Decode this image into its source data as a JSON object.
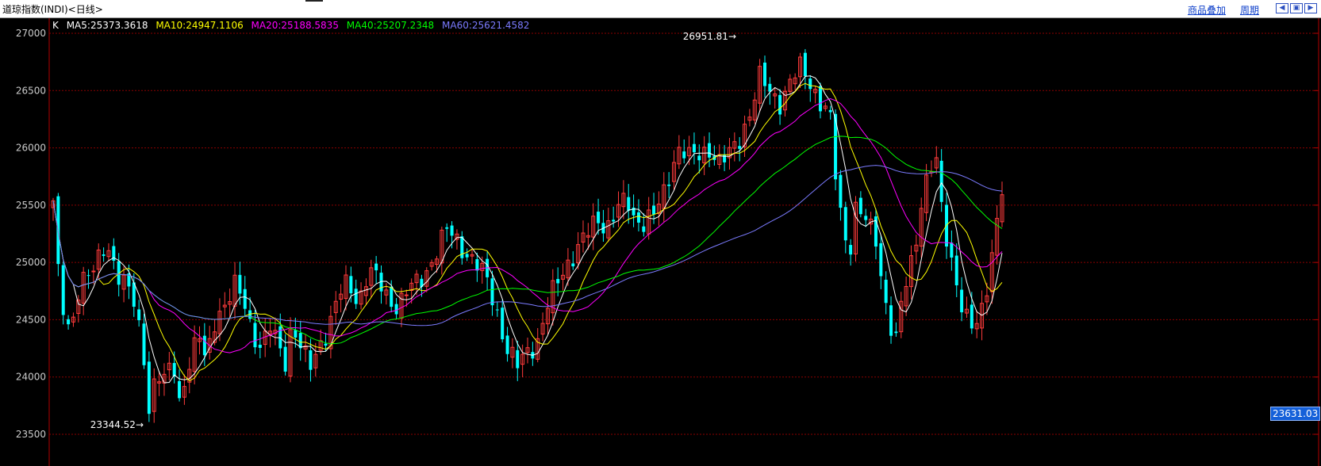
{
  "header": {
    "title": "道琼指数(INDI)<日线>",
    "overlay_label": "商品叠加",
    "period_label": "周期"
  },
  "legend": {
    "k": "K",
    "ma5": "MA5:25373.3618",
    "ma10": "MA10:24947.1106",
    "ma20": "MA20:25188.5835",
    "ma40": "MA40:25207.2348",
    "ma60": "MA60:25621.4582"
  },
  "annotations": {
    "high": "26951.81",
    "low": "23344.52"
  },
  "price_tag": "23631.03",
  "colors": {
    "up": "#ff3b3b",
    "down": "#00ffff",
    "grid": "#8b0000",
    "axis_frame": "#b40000",
    "axis_text": "#cccccc",
    "ma5": "#ffffff",
    "ma10": "#ffff00",
    "ma20": "#ff00ff",
    "ma40": "#00ff00",
    "ma60": "#7b7bff"
  },
  "chart_data": {
    "type": "candlestick",
    "title": "道琼指数(INDI)<日线>",
    "y_ticks": [
      27000,
      26500,
      26000,
      25500,
      25000,
      24500,
      24000,
      23500
    ],
    "ylim": [
      23240,
      27080
    ],
    "grid": true,
    "candle_count": 189,
    "close_anchors": [
      [
        0,
        25500
      ],
      [
        2,
        24700
      ],
      [
        5,
        24400
      ],
      [
        8,
        24820
      ],
      [
        12,
        24900
      ],
      [
        16,
        25200
      ],
      [
        20,
        24850
      ],
      [
        24,
        24700
      ],
      [
        27,
        24300
      ],
      [
        29,
        23700
      ],
      [
        31,
        24000
      ],
      [
        34,
        23950
      ],
      [
        36,
        24200
      ],
      [
        38,
        23800
      ],
      [
        41,
        24100
      ],
      [
        44,
        24350
      ],
      [
        46,
        24150
      ],
      [
        49,
        24550
      ],
      [
        52,
        24600
      ],
      [
        55,
        24800
      ],
      [
        58,
        24650
      ],
      [
        60,
        24400
      ],
      [
        63,
        24200
      ],
      [
        65,
        24450
      ],
      [
        68,
        24300
      ],
      [
        70,
        24150
      ],
      [
        72,
        24450
      ],
      [
        75,
        24200
      ],
      [
        78,
        24100
      ],
      [
        80,
        24300
      ],
      [
        83,
        24400
      ],
      [
        86,
        24700
      ],
      [
        89,
        24850
      ],
      [
        92,
        24650
      ],
      [
        95,
        24900
      ],
      [
        98,
        24850
      ],
      [
        101,
        24700
      ],
      [
        104,
        24600
      ],
      [
        107,
        24750
      ],
      [
        110,
        24850
      ],
      [
        113,
        24950
      ],
      [
        116,
        25100
      ],
      [
        119,
        25300
      ],
      [
        122,
        25200
      ],
      [
        125,
        25050
      ],
      [
        128,
        24950
      ],
      [
        131,
        24850
      ],
      [
        134,
        24550
      ],
      [
        137,
        24200
      ],
      [
        140,
        24100
      ],
      [
        143,
        24250
      ],
      [
        146,
        24300
      ],
      [
        149,
        24600
      ],
      [
        152,
        24850
      ],
      [
        155,
        25000
      ],
      [
        158,
        25100
      ],
      [
        161,
        25250
      ],
      [
        164,
        25400
      ],
      [
        167,
        25300
      ],
      [
        170,
        25450
      ],
      [
        173,
        25550
      ],
      [
        175,
        25400
      ],
      [
        178,
        25350
      ],
      [
        181,
        25400
      ],
      [
        184,
        25600
      ],
      [
        187,
        25900
      ],
      [
        189,
        26000
      ],
      [
        192,
        25900
      ],
      [
        195,
        25950
      ],
      [
        198,
        26000
      ],
      [
        201,
        25850
      ],
      [
        204,
        25950
      ],
      [
        207,
        26100
      ],
      [
        210,
        26300
      ],
      [
        213,
        26600
      ],
      [
        216,
        26500
      ],
      [
        219,
        26400
      ],
      [
        222,
        26550
      ],
      [
        225,
        26700
      ],
      [
        228,
        26600
      ],
      [
        231,
        26400
      ],
      [
        234,
        26300
      ],
      [
        236,
        25700
      ],
      [
        238,
        25300
      ],
      [
        240,
        25100
      ],
      [
        242,
        25500
      ],
      [
        244,
        25400
      ],
      [
        246,
        25300
      ],
      [
        248,
        25200
      ],
      [
        250,
        24800
      ],
      [
        252,
        24500
      ],
      [
        254,
        24300
      ],
      [
        256,
        24700
      ],
      [
        258,
        24900
      ],
      [
        260,
        25200
      ],
      [
        262,
        25600
      ],
      [
        264,
        25800
      ],
      [
        266,
        25900
      ],
      [
        268,
        25400
      ],
      [
        270,
        25100
      ],
      [
        272,
        24900
      ],
      [
        274,
        24600
      ],
      [
        276,
        24450
      ],
      [
        278,
        24400
      ],
      [
        280,
        24600
      ],
      [
        282,
        24900
      ],
      [
        284,
        25300
      ],
      [
        286,
        25631
      ]
    ]
  }
}
